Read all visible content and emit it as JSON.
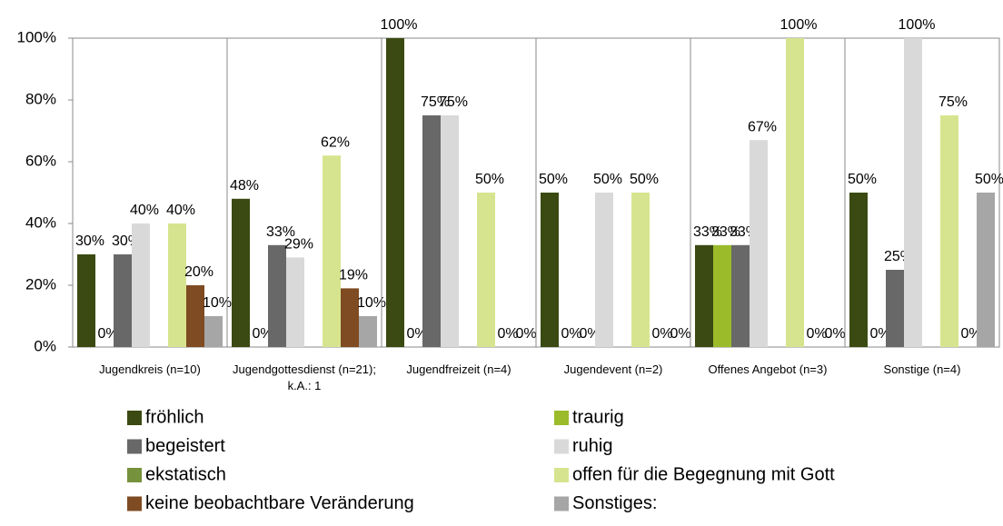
{
  "chart_data": {
    "type": "bar",
    "categories": [
      "Jugendkreis (n=10)",
      "Jugendgottesdienst (n=21); k.A.: 1",
      "Jugendfreizeit (n=4)",
      "Jugendevent (n=2)",
      "Offenes Angebot (n=3)",
      "Sonstige (n=4)"
    ],
    "series": [
      {
        "name": "fröhlich",
        "color": "#3b4a12",
        "values": [
          30,
          48,
          100,
          50,
          33,
          50
        ],
        "value_labels": [
          "30%",
          "48%",
          "100%",
          "50%",
          "33%",
          "50%"
        ]
      },
      {
        "name": "traurig",
        "color": "#9bbb2b",
        "values": [
          0,
          0,
          0,
          0,
          33,
          0
        ],
        "value_labels": [
          "0%",
          "0%",
          "0%",
          "0%",
          "33%",
          "0%"
        ]
      },
      {
        "name": "begeistert",
        "color": "#686868",
        "values": [
          30,
          33,
          75,
          0,
          33,
          25
        ],
        "value_labels": [
          "30%",
          "33%",
          "75%",
          "0%",
          "33%",
          "25%"
        ]
      },
      {
        "name": "ruhig",
        "color": "#d9d9d9",
        "values": [
          40,
          29,
          75,
          50,
          67,
          100
        ],
        "value_labels": [
          "40%",
          "29%",
          "75%",
          "50%",
          "67%",
          "100%"
        ]
      },
      {
        "name": "ekstatisch",
        "color": "#76923c",
        "values": [
          null,
          null,
          null,
          null,
          null,
          null
        ],
        "value_labels": [
          null,
          null,
          null,
          null,
          null,
          null
        ]
      },
      {
        "name": "offen für die Begegnung mit Gott",
        "color": "#d7e48f",
        "values": [
          40,
          62,
          50,
          50,
          100,
          75
        ],
        "value_labels": [
          "40%",
          "62%",
          "50%",
          "50%",
          "100%",
          "75%"
        ]
      },
      {
        "name": "keine beobachtbare Veränderung",
        "color": "#7f4b22",
        "values": [
          20,
          19,
          0,
          0,
          0,
          0
        ],
        "value_labels": [
          "20%",
          "19%",
          "0%",
          "0%",
          "0%",
          "0%"
        ]
      },
      {
        "name": "Sonstiges:",
        "color": "#a6a6a6",
        "values": [
          10,
          10,
          0,
          0,
          0,
          50
        ],
        "value_labels": [
          "10%",
          "10%",
          "0%",
          "0%",
          "0%",
          "50%"
        ]
      }
    ],
    "ylim": [
      0,
      100
    ],
    "yticks": [
      {
        "value": 0,
        "label": "0%"
      },
      {
        "value": 20,
        "label": "20%"
      },
      {
        "value": 40,
        "label": "40%"
      },
      {
        "value": 60,
        "label": "60%"
      },
      {
        "value": 80,
        "label": "80%"
      },
      {
        "value": 100,
        "label": "100%"
      }
    ]
  }
}
